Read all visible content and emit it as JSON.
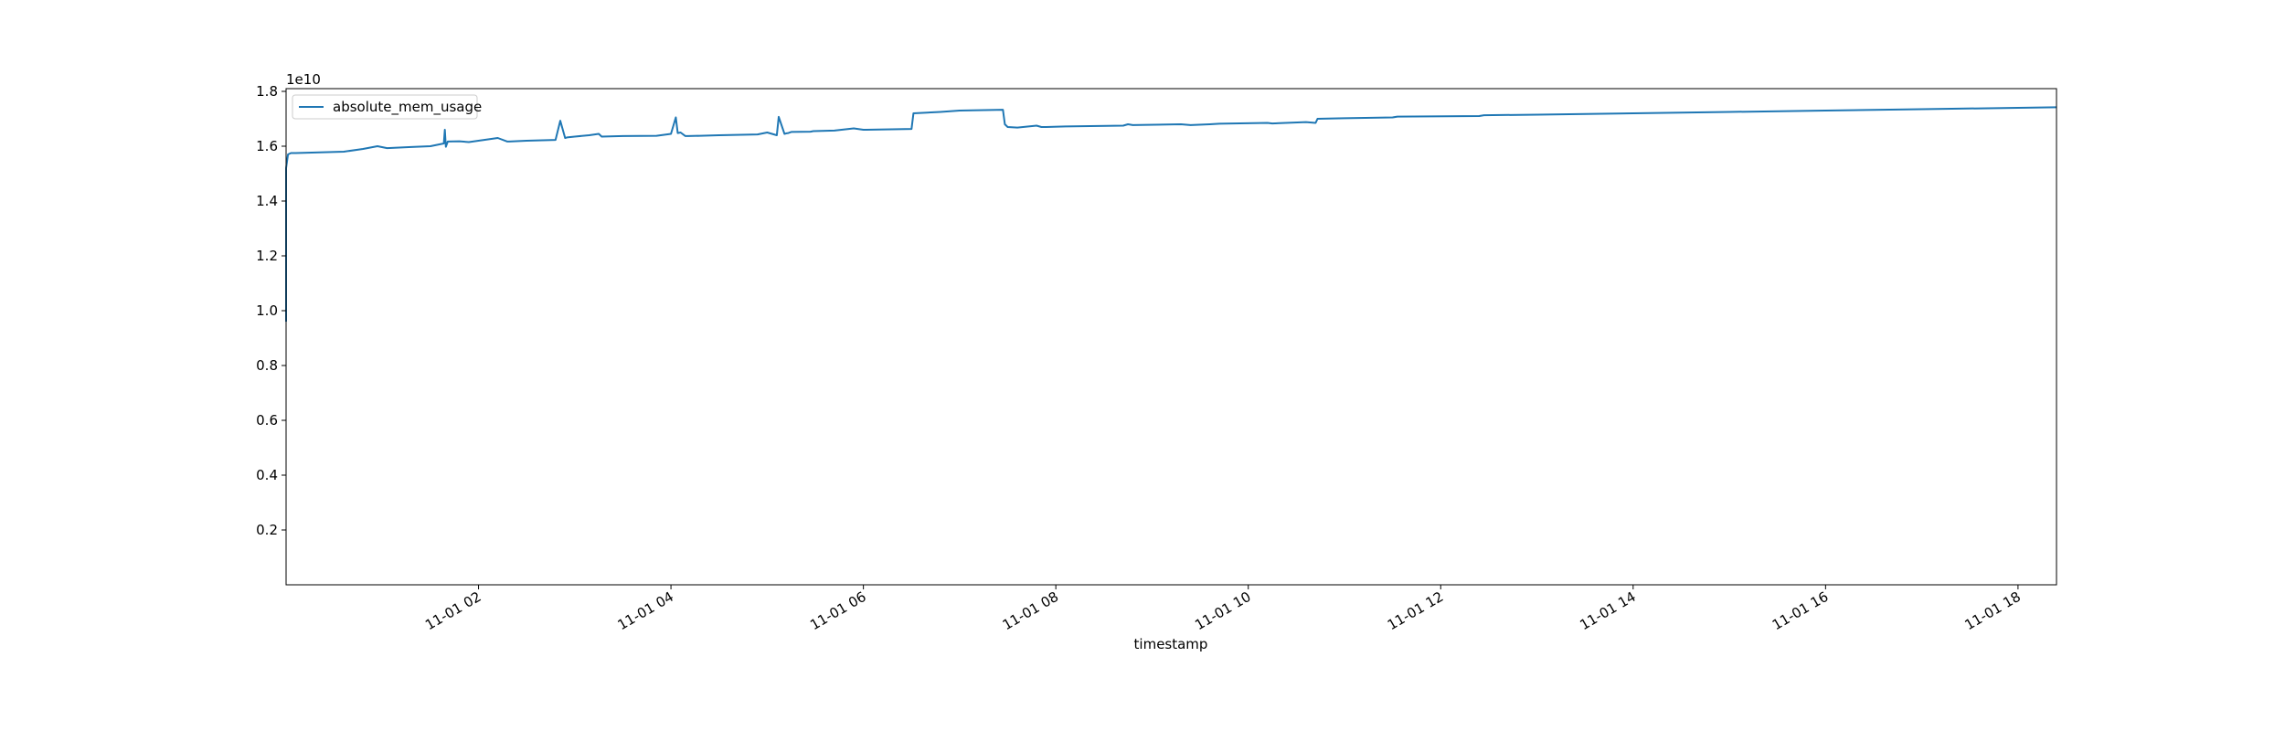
{
  "chart_data": {
    "type": "line",
    "title": "",
    "xlabel": "timestamp",
    "ylabel": "",
    "y_offset_text": "1e10",
    "x_tick_labels": [
      "11-01 02",
      "11-01 04",
      "11-01 06",
      "11-01 08",
      "11-01 10",
      "11-01 12",
      "11-01 14",
      "11-01 16",
      "11-01 18"
    ],
    "x_tick_hours": [
      2,
      4,
      6,
      8,
      10,
      12,
      14,
      16,
      18
    ],
    "y_ticks": [
      0.2,
      0.4,
      0.6,
      0.8,
      1.0,
      1.2,
      1.4,
      1.6,
      1.8
    ],
    "y_tick_labels": [
      "0.2",
      "0.4",
      "0.6",
      "0.8",
      "1.0",
      "1.2",
      "1.4",
      "1.6",
      "1.8"
    ],
    "xlim_hours": [
      0.0,
      18.4
    ],
    "ylim": [
      0.0,
      1.81
    ],
    "grid": false,
    "legend_position": "upper left",
    "series": [
      {
        "name": "absolute_mem_usage",
        "color": "#1f77b4",
        "x_hours": [
          0.0,
          0.0,
          0.02,
          0.05,
          0.1,
          0.6,
          0.8,
          0.95,
          1.05,
          1.3,
          1.5,
          1.64,
          1.65,
          1.66,
          1.68,
          1.8,
          1.9,
          2.0,
          2.1,
          2.2,
          2.3,
          2.32,
          2.5,
          2.8,
          2.85,
          2.9,
          2.92,
          3.0,
          3.15,
          3.25,
          3.28,
          3.5,
          3.85,
          4.0,
          4.05,
          4.07,
          4.1,
          4.15,
          4.18,
          4.3,
          4.5,
          4.9,
          5.0,
          5.1,
          5.12,
          5.18,
          5.2,
          5.22,
          5.25,
          5.45,
          5.48,
          5.7,
          5.9,
          6.0,
          6.03,
          6.5,
          6.52,
          6.8,
          7.0,
          7.45,
          7.47,
          7.5,
          7.6,
          7.8,
          7.85,
          7.9,
          8.1,
          8.7,
          8.75,
          8.8,
          9.3,
          9.4,
          9.6,
          9.7,
          10.2,
          10.25,
          10.6,
          10.7,
          10.72,
          11.0,
          11.5,
          11.55,
          12.4,
          12.45,
          13.0,
          14.0,
          15.0,
          16.0,
          17.0,
          18.0,
          18.4
        ],
        "values": [
          0.96,
          1.52,
          1.57,
          1.575,
          1.575,
          1.58,
          1.59,
          1.6,
          1.593,
          1.597,
          1.6,
          1.61,
          1.66,
          1.598,
          1.617,
          1.618,
          1.615,
          1.62,
          1.625,
          1.63,
          1.617,
          1.617,
          1.62,
          1.623,
          1.693,
          1.63,
          1.632,
          1.635,
          1.64,
          1.645,
          1.635,
          1.637,
          1.638,
          1.645,
          1.705,
          1.648,
          1.65,
          1.637,
          1.637,
          1.638,
          1.64,
          1.643,
          1.65,
          1.64,
          1.707,
          1.645,
          1.647,
          1.648,
          1.652,
          1.653,
          1.655,
          1.657,
          1.665,
          1.66,
          1.66,
          1.663,
          1.72,
          1.725,
          1.73,
          1.733,
          1.68,
          1.67,
          1.668,
          1.675,
          1.67,
          1.67,
          1.672,
          1.675,
          1.68,
          1.677,
          1.68,
          1.677,
          1.68,
          1.682,
          1.685,
          1.683,
          1.688,
          1.685,
          1.7,
          1.702,
          1.705,
          1.708,
          1.71,
          1.713,
          1.715,
          1.72,
          1.725,
          1.73,
          1.735,
          1.74,
          1.742
        ]
      }
    ]
  }
}
